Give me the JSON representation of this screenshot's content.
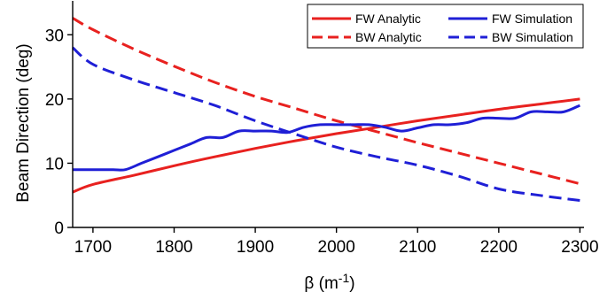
{
  "chart_data": {
    "type": "line",
    "title": "",
    "xlabel": "β (m-1)",
    "ylabel": "Beam Direction (deg)",
    "xlabel_parts": {
      "symbol": "β",
      "pre": " (m",
      "sup": "-1",
      "post": ")"
    },
    "xlim": [
      1675,
      2305
    ],
    "ylim": [
      0,
      35
    ],
    "xticks": [
      1700,
      1800,
      1900,
      2000,
      2100,
      2200,
      2300
    ],
    "xtick_labels": [
      "1700",
      "1800",
      "1900",
      "2000",
      "2100",
      "2200",
      "2300"
    ],
    "yticks": [
      0,
      10,
      20,
      30
    ],
    "ytick_labels": [
      "0",
      "10",
      "20",
      "30"
    ],
    "grid": false,
    "legend_position": "top-right",
    "series": [
      {
        "name": "FW Analytic",
        "color": "#e8211f",
        "dash": "solid",
        "x": [
          1675,
          1700,
          1750,
          1800,
          1850,
          1900,
          1950,
          2000,
          2050,
          2100,
          2150,
          2200,
          2250,
          2300
        ],
        "y": [
          5.5,
          6.7,
          8.1,
          9.6,
          11.0,
          12.3,
          13.5,
          14.6,
          15.6,
          16.6,
          17.5,
          18.4,
          19.2,
          20.0
        ]
      },
      {
        "name": "BW Analytic",
        "color": "#e8211f",
        "dash": "dashed",
        "x": [
          1675,
          1700,
          1750,
          1800,
          1850,
          1900,
          1950,
          2000,
          2050,
          2100,
          2150,
          2200,
          2250,
          2300
        ],
        "y": [
          32.6,
          30.8,
          27.8,
          25.1,
          22.6,
          20.4,
          18.5,
          16.6,
          14.9,
          13.2,
          11.6,
          10.0,
          8.4,
          6.8
        ]
      },
      {
        "name": "FW Simulation",
        "color": "#1f1fd6",
        "dash": "solid",
        "x": [
          1675,
          1700,
          1725,
          1740,
          1760,
          1780,
          1800,
          1820,
          1840,
          1860,
          1880,
          1900,
          1920,
          1940,
          1960,
          1980,
          2000,
          2020,
          2040,
          2060,
          2080,
          2100,
          2120,
          2140,
          2160,
          2180,
          2200,
          2220,
          2240,
          2260,
          2280,
          2300
        ],
        "y": [
          9.0,
          9.0,
          9.0,
          9.0,
          10.0,
          11.0,
          12.0,
          13.0,
          14.0,
          14.0,
          15.0,
          15.0,
          15.0,
          14.8,
          15.6,
          16.0,
          16.0,
          16.0,
          16.0,
          15.6,
          15.0,
          15.5,
          16.0,
          16.0,
          16.3,
          17.0,
          17.0,
          17.0,
          18.0,
          18.0,
          18.0,
          19.0
        ]
      },
      {
        "name": "BW Simulation",
        "color": "#1f1fd6",
        "dash": "dashed",
        "x": [
          1675,
          1700,
          1750,
          1800,
          1850,
          1900,
          1950,
          2000,
          2050,
          2100,
          2150,
          2200,
          2250,
          2300
        ],
        "y": [
          28.0,
          25.4,
          23.0,
          21.0,
          19.0,
          16.6,
          14.5,
          12.5,
          11.0,
          9.7,
          8.0,
          6.0,
          5.0,
          4.2
        ]
      }
    ]
  }
}
